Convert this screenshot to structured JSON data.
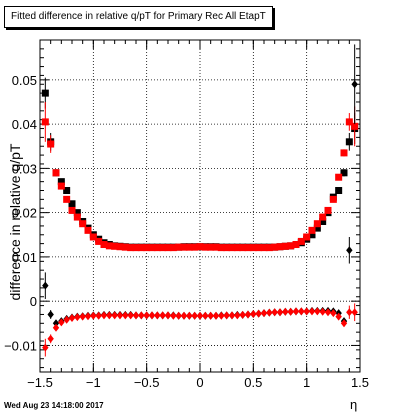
{
  "chart_data": {
    "type": "scatter",
    "title": "Fitted difference in relative q/pT for Primary Rec All EtapT",
    "xlabel": "η",
    "ylabel": "difference in relative q/pT",
    "xlim": [
      -1.5,
      1.5
    ],
    "ylim": [
      -0.016,
      0.059
    ],
    "x_ticks": [
      "−1.5",
      "−1",
      "−0.5",
      "0",
      "0.5",
      "1",
      "1.5"
    ],
    "y_ticks": [
      "−0.01",
      "0",
      "0.01",
      "0.02",
      "0.03",
      "0.04",
      "0.05"
    ],
    "grid": true,
    "series": [
      {
        "marker": "square",
        "color": "#000000",
        "x": [
          -1.45,
          -1.4,
          -1.35,
          -1.3,
          -1.25,
          -1.2,
          -1.15,
          -1.1,
          -1.05,
          -1.0,
          -0.95,
          -0.9,
          -0.85,
          -0.8,
          -0.75,
          -0.7,
          -0.65,
          -0.6,
          -0.55,
          -0.5,
          -0.45,
          -0.4,
          -0.35,
          -0.3,
          -0.25,
          -0.2,
          -0.15,
          -0.1,
          -0.05,
          0.0,
          0.05,
          0.1,
          0.15,
          0.2,
          0.25,
          0.3,
          0.35,
          0.4,
          0.45,
          0.5,
          0.55,
          0.6,
          0.65,
          0.7,
          0.75,
          0.8,
          0.85,
          0.9,
          0.95,
          1.0,
          1.05,
          1.1,
          1.15,
          1.2,
          1.25,
          1.3,
          1.35,
          1.4,
          1.45
        ],
        "y": [
          0.047,
          0.036,
          0.029,
          0.027,
          0.025,
          0.022,
          0.02,
          0.018,
          0.0165,
          0.015,
          0.014,
          0.0132,
          0.0128,
          0.0125,
          0.0124,
          0.0123,
          0.0122,
          0.0122,
          0.0122,
          0.0122,
          0.0122,
          0.0122,
          0.0122,
          0.0122,
          0.0122,
          0.0122,
          0.0123,
          0.0123,
          0.0123,
          0.0123,
          0.0123,
          0.0123,
          0.0123,
          0.0122,
          0.0122,
          0.0122,
          0.0122,
          0.0122,
          0.0122,
          0.0122,
          0.0122,
          0.0122,
          0.0122,
          0.0122,
          0.0123,
          0.0124,
          0.0125,
          0.0128,
          0.0132,
          0.014,
          0.015,
          0.0165,
          0.018,
          0.02,
          0.0235,
          0.025,
          0.029,
          0.036,
          0.039
        ],
        "err": [
          0.0035,
          0.002,
          0.0008,
          0.0006,
          0.0005,
          0.0004,
          0.0003,
          0.0003,
          0.0002,
          0.0002,
          0.0002,
          0.0002,
          0.0002,
          0.0002,
          0.0002,
          0.0002,
          0.0002,
          0.0002,
          0.0002,
          0.0002,
          0.0002,
          0.0002,
          0.0002,
          0.0002,
          0.0002,
          0.0002,
          0.0002,
          0.0002,
          0.0002,
          0.0002,
          0.0002,
          0.0002,
          0.0002,
          0.0002,
          0.0002,
          0.0002,
          0.0002,
          0.0002,
          0.0002,
          0.0002,
          0.0002,
          0.0002,
          0.0002,
          0.0002,
          0.0002,
          0.0002,
          0.0002,
          0.0002,
          0.0002,
          0.0002,
          0.0002,
          0.0003,
          0.0003,
          0.0004,
          0.0005,
          0.0006,
          0.0008,
          0.002,
          0.0035
        ]
      },
      {
        "marker": "square",
        "color": "#ff0000",
        "x": [
          -1.45,
          -1.4,
          -1.35,
          -1.3,
          -1.25,
          -1.2,
          -1.15,
          -1.1,
          -1.05,
          -1.0,
          -0.95,
          -0.9,
          -0.85,
          -0.8,
          -0.75,
          -0.7,
          -0.65,
          -0.6,
          -0.55,
          -0.5,
          -0.45,
          -0.4,
          -0.35,
          -0.3,
          -0.25,
          -0.2,
          -0.15,
          -0.1,
          -0.05,
          0.0,
          0.05,
          0.1,
          0.15,
          0.2,
          0.25,
          0.3,
          0.35,
          0.4,
          0.45,
          0.5,
          0.55,
          0.6,
          0.65,
          0.7,
          0.75,
          0.8,
          0.85,
          0.9,
          0.95,
          1.0,
          1.05,
          1.1,
          1.15,
          1.2,
          1.25,
          1.3,
          1.35,
          1.4,
          1.45
        ],
        "y": [
          0.0405,
          0.0355,
          0.029,
          0.026,
          0.023,
          0.0205,
          0.019,
          0.0175,
          0.016,
          0.0145,
          0.0135,
          0.0128,
          0.0125,
          0.0124,
          0.0123,
          0.0122,
          0.0121,
          0.0121,
          0.0121,
          0.0121,
          0.0121,
          0.0121,
          0.0121,
          0.0121,
          0.0121,
          0.0122,
          0.0122,
          0.0122,
          0.0122,
          0.0123,
          0.0122,
          0.0122,
          0.0122,
          0.0121,
          0.0121,
          0.0121,
          0.0121,
          0.0121,
          0.0121,
          0.0121,
          0.0121,
          0.0121,
          0.0121,
          0.0122,
          0.0123,
          0.0124,
          0.0125,
          0.0128,
          0.0135,
          0.0145,
          0.016,
          0.0175,
          0.019,
          0.0205,
          0.023,
          0.028,
          0.0335,
          0.0405,
          0.0395
        ],
        "err": [
          0.0045,
          0.002,
          0.0008,
          0.0006,
          0.0005,
          0.0004,
          0.0003,
          0.0003,
          0.0002,
          0.0002,
          0.0002,
          0.0002,
          0.0002,
          0.0002,
          0.0002,
          0.0002,
          0.0002,
          0.0002,
          0.0002,
          0.0002,
          0.0002,
          0.0002,
          0.0002,
          0.0002,
          0.0002,
          0.0002,
          0.0002,
          0.0002,
          0.0002,
          0.0002,
          0.0002,
          0.0002,
          0.0002,
          0.0002,
          0.0002,
          0.0002,
          0.0002,
          0.0002,
          0.0002,
          0.0002,
          0.0002,
          0.0002,
          0.0002,
          0.0002,
          0.0002,
          0.0002,
          0.0002,
          0.0002,
          0.0002,
          0.0002,
          0.0002,
          0.0003,
          0.0003,
          0.0004,
          0.0005,
          0.0006,
          0.0008,
          0.002,
          0.0045
        ]
      },
      {
        "marker": "diamond",
        "color": "#000000",
        "x": [
          -1.45,
          -1.4,
          -1.35,
          -1.3,
          -1.25,
          -1.2,
          -1.15,
          -1.1,
          -1.05,
          -1.0,
          -0.95,
          -0.9,
          -0.85,
          -0.8,
          -0.75,
          -0.7,
          -0.65,
          -0.6,
          -0.55,
          -0.5,
          -0.45,
          -0.4,
          -0.35,
          -0.3,
          -0.25,
          -0.2,
          -0.15,
          -0.1,
          -0.05,
          0.0,
          0.05,
          0.1,
          0.15,
          0.2,
          0.25,
          0.3,
          0.35,
          0.4,
          0.45,
          0.5,
          0.55,
          0.6,
          0.65,
          0.7,
          0.75,
          0.8,
          0.85,
          0.9,
          0.95,
          1.0,
          1.05,
          1.1,
          1.15,
          1.2,
          1.25,
          1.3,
          1.35,
          1.4,
          1.45
        ],
        "y": [
          0.0035,
          -0.003,
          -0.005,
          -0.0045,
          -0.004,
          -0.0037,
          -0.0035,
          -0.0034,
          -0.0033,
          -0.0032,
          -0.0032,
          -0.0031,
          -0.0031,
          -0.0031,
          -0.0031,
          -0.0031,
          -0.0031,
          -0.0032,
          -0.0032,
          -0.0032,
          -0.0032,
          -0.0032,
          -0.0032,
          -0.0032,
          -0.0032,
          -0.0033,
          -0.0033,
          -0.0033,
          -0.0033,
          -0.0033,
          -0.0033,
          -0.0033,
          -0.0033,
          -0.0032,
          -0.0032,
          -0.0032,
          -0.0031,
          -0.0031,
          -0.003,
          -0.0029,
          -0.0028,
          -0.0027,
          -0.0026,
          -0.0025,
          -0.0025,
          -0.0024,
          -0.0024,
          -0.0023,
          -0.0023,
          -0.0023,
          -0.0022,
          -0.0022,
          -0.0022,
          -0.0022,
          -0.0023,
          -0.0027,
          -0.0045,
          0.0115,
          0.049
        ],
        "err": [
          0.003,
          0.001,
          0.0007,
          0.0005,
          0.0004,
          0.0003,
          0.0003,
          0.0002,
          0.0002,
          0.0002,
          0.0002,
          0.0002,
          0.0002,
          0.0002,
          0.0002,
          0.0002,
          0.0002,
          0.0002,
          0.0002,
          0.0002,
          0.0002,
          0.0002,
          0.0002,
          0.0002,
          0.0002,
          0.0002,
          0.0002,
          0.0002,
          0.0002,
          0.0002,
          0.0002,
          0.0002,
          0.0002,
          0.0002,
          0.0002,
          0.0002,
          0.0002,
          0.0002,
          0.0002,
          0.0002,
          0.0002,
          0.0002,
          0.0002,
          0.0002,
          0.0002,
          0.0002,
          0.0002,
          0.0002,
          0.0002,
          0.0002,
          0.0002,
          0.0002,
          0.0002,
          0.0003,
          0.0003,
          0.0005,
          0.0007,
          0.003,
          0.009
        ]
      },
      {
        "marker": "diamond",
        "color": "#ff0000",
        "x": [
          -1.45,
          -1.4,
          -1.35,
          -1.3,
          -1.25,
          -1.2,
          -1.15,
          -1.1,
          -1.05,
          -1.0,
          -0.95,
          -0.9,
          -0.85,
          -0.8,
          -0.75,
          -0.7,
          -0.65,
          -0.6,
          -0.55,
          -0.5,
          -0.45,
          -0.4,
          -0.35,
          -0.3,
          -0.25,
          -0.2,
          -0.15,
          -0.1,
          -0.05,
          0.0,
          0.05,
          0.1,
          0.15,
          0.2,
          0.25,
          0.3,
          0.35,
          0.4,
          0.45,
          0.5,
          0.55,
          0.6,
          0.65,
          0.7,
          0.75,
          0.8,
          0.85,
          0.9,
          0.95,
          1.0,
          1.05,
          1.1,
          1.15,
          1.2,
          1.25,
          1.3,
          1.35,
          1.4,
          1.45
        ],
        "y": [
          -0.0105,
          -0.0085,
          -0.006,
          -0.0048,
          -0.0042,
          -0.0038,
          -0.0036,
          -0.0035,
          -0.0034,
          -0.0033,
          -0.0033,
          -0.0032,
          -0.0032,
          -0.0032,
          -0.0032,
          -0.0032,
          -0.0032,
          -0.0032,
          -0.0032,
          -0.0032,
          -0.0032,
          -0.0032,
          -0.0032,
          -0.0032,
          -0.0033,
          -0.0033,
          -0.0033,
          -0.0033,
          -0.0033,
          -0.0033,
          -0.0033,
          -0.0033,
          -0.0033,
          -0.0033,
          -0.0032,
          -0.0032,
          -0.0032,
          -0.0031,
          -0.003,
          -0.0029,
          -0.0028,
          -0.0027,
          -0.0026,
          -0.0025,
          -0.0025,
          -0.0024,
          -0.0024,
          -0.0023,
          -0.0023,
          -0.0023,
          -0.0023,
          -0.0023,
          -0.0024,
          -0.0025,
          -0.0027,
          -0.0035,
          -0.005,
          -0.0025,
          -0.0025
        ],
        "err": [
          0.002,
          0.001,
          0.0007,
          0.0005,
          0.0004,
          0.0003,
          0.0003,
          0.0002,
          0.0002,
          0.0002,
          0.0002,
          0.0002,
          0.0002,
          0.0002,
          0.0002,
          0.0002,
          0.0002,
          0.0002,
          0.0002,
          0.0002,
          0.0002,
          0.0002,
          0.0002,
          0.0002,
          0.0002,
          0.0002,
          0.0002,
          0.0002,
          0.0002,
          0.0002,
          0.0002,
          0.0002,
          0.0002,
          0.0002,
          0.0002,
          0.0002,
          0.0002,
          0.0002,
          0.0002,
          0.0002,
          0.0002,
          0.0002,
          0.0002,
          0.0002,
          0.0002,
          0.0002,
          0.0002,
          0.0002,
          0.0002,
          0.0002,
          0.0002,
          0.0002,
          0.0002,
          0.0003,
          0.0003,
          0.0005,
          0.0008,
          0.0015,
          0.002
        ]
      }
    ]
  },
  "footer": {
    "date": "Wed Aug 23 14:18:00 2017"
  }
}
